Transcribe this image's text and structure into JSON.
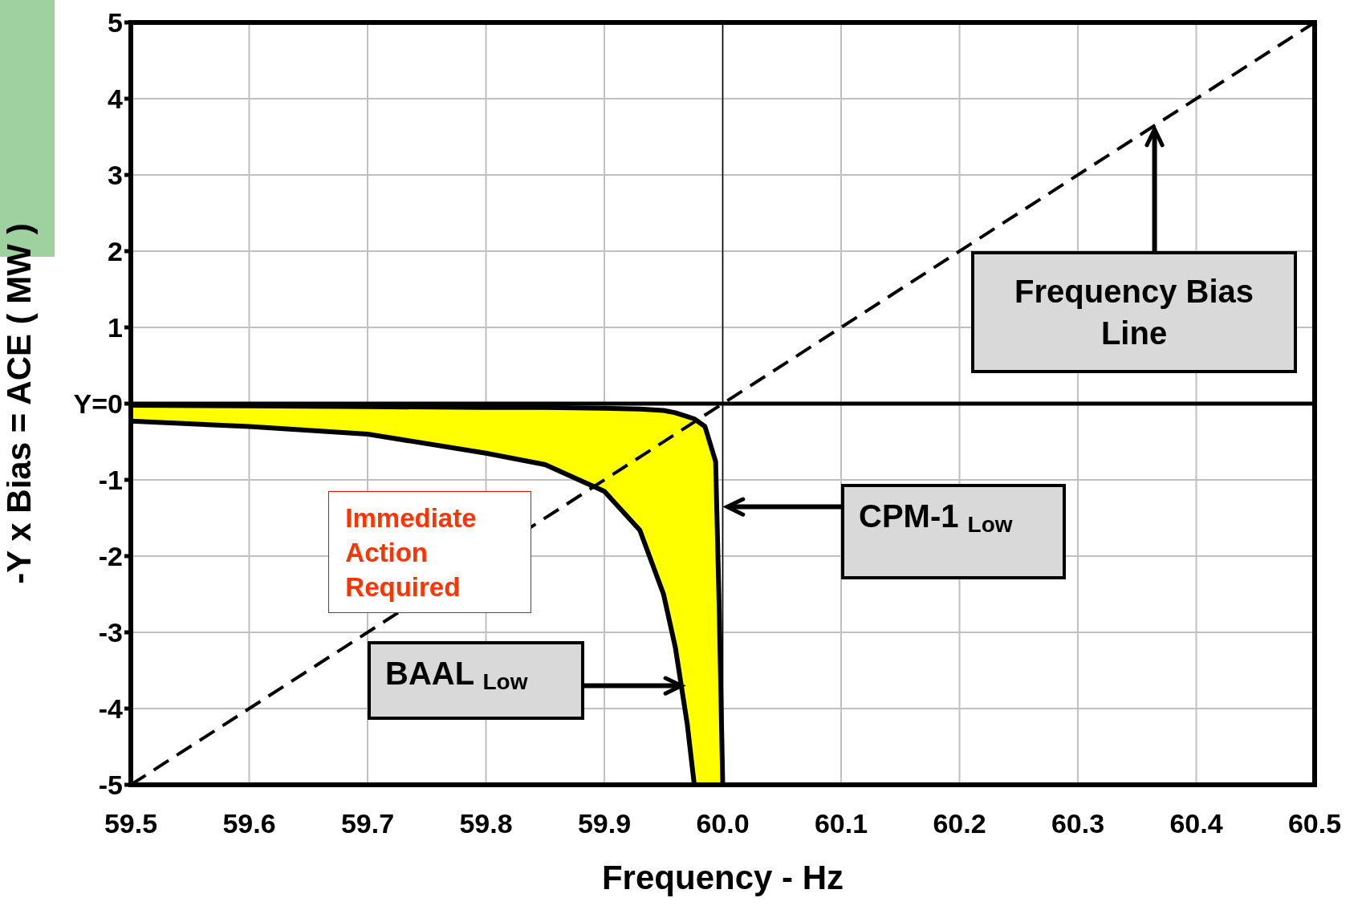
{
  "chart_data": {
    "type": "line",
    "xlabel": "Frequency - Hz",
    "ylabel": "-Y x Bias = ACE ( MW )",
    "x": [
      59.5,
      59.6,
      59.7,
      59.8,
      59.85,
      59.9,
      59.93,
      59.95,
      59.96,
      59.97,
      59.976,
      59.985,
      59.994,
      59.997,
      60.0
    ],
    "series": [
      {
        "color": "#000000",
        "values": [
          -0.23,
          -0.3,
          -0.4,
          -0.65,
          -0.8,
          -1.15,
          -1.66,
          -2.5,
          -3.2,
          -4.2,
          -5,
          null,
          null,
          null,
          null
        ]
      },
      {
        "color": "#000000",
        "values": [
          -0.02,
          -0.03,
          -0.04,
          -0.05,
          -0.05,
          -0.06,
          -0.07,
          -0.09,
          -0.12,
          -0.17,
          -0.2,
          -0.3,
          -0.76,
          -2.67,
          -5
        ],
        "lower": [
          -0.23,
          -0.3,
          -0.4,
          -0.65,
          -0.8,
          -1.15,
          -1.66,
          -2.5,
          -3.2,
          -4.2,
          -5,
          -5,
          -5,
          -5,
          -5
        ],
        "upper": [
          -0.02,
          -0.03,
          -0.04,
          -0.05,
          -0.05,
          -0.06,
          -0.07,
          -0.09,
          -0.12,
          -0.17,
          -0.2,
          -0.3,
          -0.76,
          -2.67,
          -5
        ]
      },
      {
        "type": "line",
        "color": "#000000",
        "line_style": "dashed",
        "x": [
          59.5,
          60.5
        ],
        "values": [
          -5,
          5
        ]
      }
    ],
    "xlim": [
      59.5,
      60.5
    ],
    "xticks": [
      59.5,
      59.6,
      59.7,
      59.8,
      59.9,
      {
        "value": 60,
        "label": "60.0"
      },
      60.1,
      60.2,
      60.3,
      60.4,
      60.5
    ],
    "ylim": [
      -5,
      5
    ],
    "yticks": [
      -5,
      -4,
      -3,
      -2,
      -1,
      {
        "value": 0,
        "label": "Y=0"
      },
      1,
      2,
      3,
      4,
      5
    ],
    "grid": true,
    "ref_lines": [
      {
        "axis": "x",
        "value": 60
      },
      {
        "axis": "y",
        "value": 0
      }
    ],
    "annotations": [
      {
        "text": "Frequency Bias Line",
        "x": 60.365,
        "y": 3.6
      },
      "CPM-1 $_{Low}$",
      "BAAL $_{Low}$",
      "Immediate Action Required"
    ]
  }
}
